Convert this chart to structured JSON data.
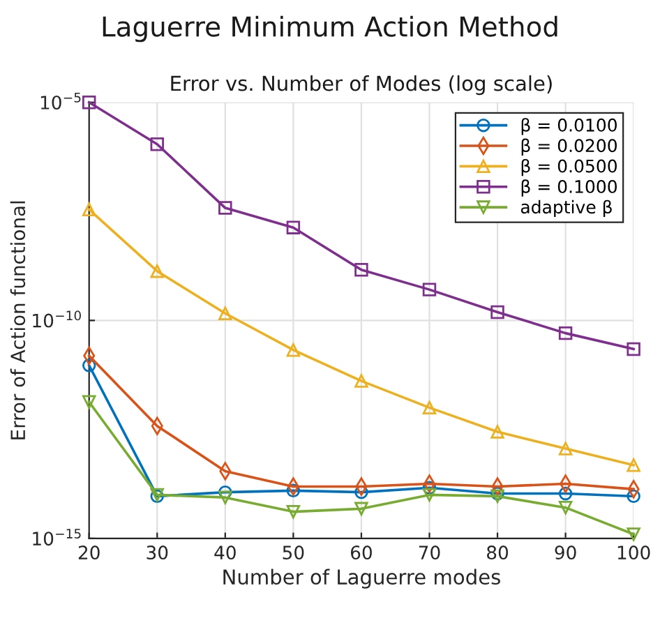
{
  "chart_data": {
    "type": "line",
    "title": "Error vs. Number of Modes (log scale)",
    "subtitle": "Laguerre Minimum Action Method",
    "xlabel": "Number of Laguerre modes",
    "ylabel": "Error of Action functional",
    "x": [
      20,
      30,
      40,
      50,
      60,
      70,
      80,
      90,
      100
    ],
    "series": [
      {
        "name": "β = 0.0100",
        "color": "#0072bd",
        "marker": "circle",
        "values": [
          9.3e-12,
          9.3e-15,
          1.15e-14,
          1.25e-14,
          1.15e-14,
          1.45e-14,
          1.07e-14,
          1.07e-14,
          9.3e-15
        ]
      },
      {
        "name": "β = 0.0200",
        "color": "#d95319",
        "marker": "diamond",
        "values": [
          1.55e-11,
          3.8e-13,
          3.5e-14,
          1.55e-14,
          1.55e-14,
          1.8e-14,
          1.55e-14,
          1.8e-14,
          1.35e-14
        ]
      },
      {
        "name": "β = 0.0500",
        "color": "#edb120",
        "marker": "triangle",
        "values": [
          3.5e-08,
          1.35e-09,
          1.45e-10,
          2.1e-11,
          4.1e-12,
          1e-12,
          2.8e-13,
          1.15e-13,
          4.8e-14
        ]
      },
      {
        "name": "β = 0.1000",
        "color": "#7e2f8e",
        "marker": "square",
        "values": [
          1e-05,
          1.1e-06,
          3.8e-08,
          1.35e-08,
          1.45e-09,
          5.1e-10,
          1.55e-10,
          5.1e-11,
          2.2e-11
        ]
      },
      {
        "name": "adaptive β",
        "color": "#77ac30",
        "marker": "triangle_down",
        "values": [
          1.35e-12,
          1e-14,
          8.7e-15,
          4.1e-15,
          4.8e-15,
          1e-14,
          9.3e-15,
          5.1e-15,
          1.25e-15
        ]
      }
    ],
    "log": "y",
    "xlim": [
      20,
      100
    ],
    "xticks": [
      20,
      30,
      40,
      50,
      60,
      70,
      80,
      90,
      100
    ],
    "ylim": [
      1e-15,
      1e-05
    ],
    "yticks": [
      {
        "value": 1e-15,
        "label": "10$^{−15}$"
      },
      {
        "value": 1e-10,
        "label": "10$^{−10}$"
      },
      {
        "value": 1e-05,
        "label": "10$^{−5}$"
      }
    ],
    "grid": true,
    "legend": "top right",
    "line_style": "solid"
  }
}
